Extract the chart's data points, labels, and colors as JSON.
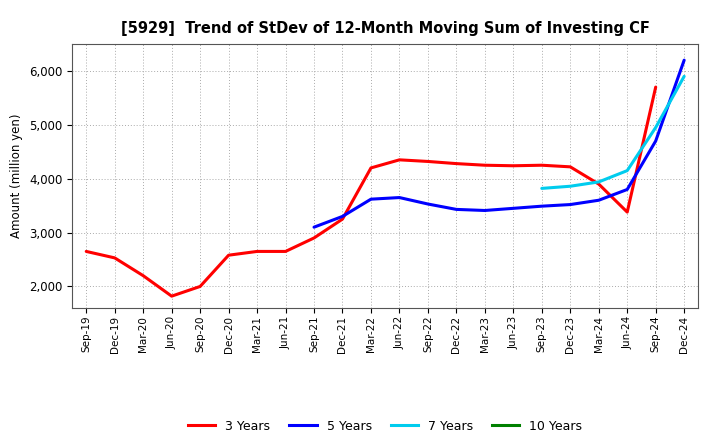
{
  "title": "[5929]  Trend of StDev of 12-Month Moving Sum of Investing CF",
  "ylabel": "Amount (million yen)",
  "background_color": "#ffffff",
  "grid_color": "#aaaaaa",
  "ylim": [
    1600,
    6500
  ],
  "yticks": [
    2000,
    3000,
    4000,
    5000,
    6000
  ],
  "series": {
    "3years": {
      "color": "#ff0000",
      "label": "3 Years",
      "x": [
        "Sep-19",
        "Dec-19",
        "Mar-20",
        "Jun-20",
        "Sep-20",
        "Dec-20",
        "Mar-21",
        "Jun-21",
        "Sep-21",
        "Dec-21",
        "Mar-22",
        "Jun-22",
        "Sep-22",
        "Dec-22",
        "Mar-23",
        "Jun-23",
        "Sep-23",
        "Dec-23",
        "Mar-24",
        "Jun-24",
        "Sep-24"
      ],
      "y": [
        2650,
        2530,
        2200,
        1820,
        2000,
        2580,
        2650,
        2650,
        2900,
        3250,
        4200,
        4350,
        4320,
        4280,
        4250,
        4240,
        4250,
        4220,
        3900,
        3380,
        5700
      ]
    },
    "5years": {
      "color": "#0000ff",
      "label": "5 Years",
      "x": [
        "Sep-21",
        "Dec-21",
        "Mar-22",
        "Jun-22",
        "Sep-22",
        "Dec-22",
        "Mar-23",
        "Jun-23",
        "Sep-23",
        "Dec-23",
        "Mar-24",
        "Jun-24",
        "Sep-24",
        "Dec-24"
      ],
      "y": [
        3100,
        3300,
        3620,
        3650,
        3530,
        3430,
        3410,
        3450,
        3490,
        3520,
        3600,
        3800,
        4700,
        6200
      ]
    },
    "7years": {
      "color": "#00ccee",
      "label": "7 Years",
      "x": [
        "Sep-23",
        "Dec-23",
        "Mar-24",
        "Jun-24",
        "Sep-24",
        "Dec-24"
      ],
      "y": [
        3820,
        3860,
        3940,
        4150,
        4950,
        5900
      ]
    },
    "10years": {
      "color": "#008000",
      "label": "10 Years",
      "x": [],
      "y": []
    }
  },
  "xticks": [
    "Sep-19",
    "Dec-19",
    "Mar-20",
    "Jun-20",
    "Sep-20",
    "Dec-20",
    "Mar-21",
    "Jun-21",
    "Sep-21",
    "Dec-21",
    "Mar-22",
    "Jun-22",
    "Sep-22",
    "Dec-22",
    "Mar-23",
    "Jun-23",
    "Sep-23",
    "Dec-23",
    "Mar-24",
    "Jun-24",
    "Sep-24",
    "Dec-24"
  ]
}
